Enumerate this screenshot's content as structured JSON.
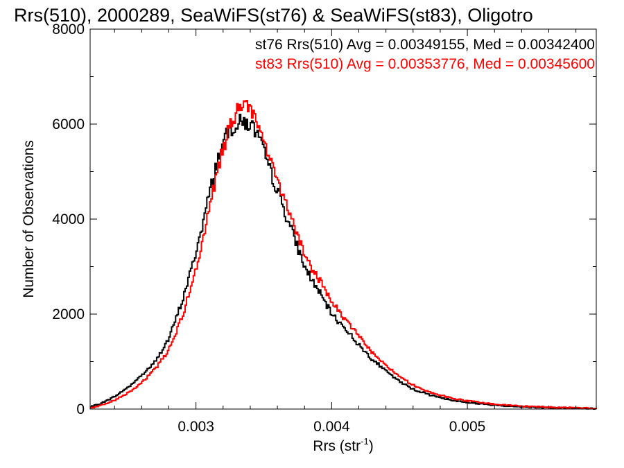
{
  "chart_data": {
    "type": "line",
    "title": "Rrs(510), 2000289, SeaWiFS(st76) & SeaWiFS(st83), Oligotro",
    "xlabel_main": "Rrs (str",
    "xlabel_sup": "-1",
    "xlabel_close": ")",
    "ylabel": "Number of Observations",
    "xlim": [
      0.00222,
      0.00595
    ],
    "ylim": [
      0,
      8000
    ],
    "x_ticks": [
      {
        "value": 0.003,
        "label": "0.003"
      },
      {
        "value": 0.004,
        "label": "0.004"
      },
      {
        "value": 0.005,
        "label": "0.005"
      }
    ],
    "y_ticks": [
      {
        "value": 0,
        "label": "0"
      },
      {
        "value": 2000,
        "label": "2000"
      },
      {
        "value": 4000,
        "label": "4000"
      },
      {
        "value": 6000,
        "label": "6000"
      },
      {
        "value": 8000,
        "label": "8000"
      }
    ],
    "grid": false,
    "annotations": [
      {
        "text": "st76 Rrs(510) Avg = 0.00349155, Med = 0.00342400",
        "color": "#000000"
      },
      {
        "text": "st83 Rrs(510) Avg = 0.00353776, Med = 0.00345600",
        "color": "#ff0000"
      }
    ],
    "series": [
      {
        "color": "#000000",
        "x": [
          0.00222,
          0.0023,
          0.0024,
          0.0025,
          0.0026,
          0.0027,
          0.0028,
          0.0029,
          0.003,
          0.00305,
          0.0031,
          0.00315,
          0.0032,
          0.00325,
          0.0033,
          0.00335,
          0.0034,
          0.00345,
          0.0035,
          0.00355,
          0.0036,
          0.00365,
          0.0037,
          0.00375,
          0.0038,
          0.0039,
          0.004,
          0.0041,
          0.0042,
          0.0043,
          0.0044,
          0.0045,
          0.0046,
          0.0047,
          0.0048,
          0.0049,
          0.005,
          0.0052,
          0.0054,
          0.0056,
          0.0058,
          0.00595
        ],
        "values": [
          40,
          120,
          260,
          460,
          710,
          1000,
          1480,
          2280,
          3300,
          3900,
          4550,
          5150,
          5600,
          5900,
          6000,
          6050,
          6000,
          5800,
          5400,
          5000,
          4600,
          4200,
          3800,
          3400,
          3000,
          2500,
          2000,
          1700,
          1350,
          1050,
          800,
          580,
          420,
          320,
          240,
          180,
          140,
          80,
          50,
          30,
          20,
          10
        ]
      },
      {
        "color": "#ff0000",
        "x": [
          0.00222,
          0.0023,
          0.0024,
          0.0025,
          0.0026,
          0.0027,
          0.0028,
          0.0029,
          0.003,
          0.00305,
          0.0031,
          0.00315,
          0.0032,
          0.00325,
          0.0033,
          0.00335,
          0.0034,
          0.00345,
          0.0035,
          0.00355,
          0.0036,
          0.00365,
          0.0037,
          0.00375,
          0.0038,
          0.0039,
          0.004,
          0.0041,
          0.0042,
          0.0043,
          0.0044,
          0.0045,
          0.0046,
          0.0047,
          0.0048,
          0.0049,
          0.005,
          0.0052,
          0.0054,
          0.0056,
          0.0058,
          0.00595
        ],
        "values": [
          20,
          80,
          180,
          340,
          560,
          850,
          1250,
          1950,
          2950,
          3550,
          4250,
          4900,
          5500,
          5950,
          6250,
          6350,
          6300,
          6050,
          5650,
          5250,
          4850,
          4450,
          4050,
          3650,
          3250,
          2750,
          2250,
          1900,
          1550,
          1200,
          920,
          680,
          500,
          380,
          290,
          220,
          170,
          100,
          60,
          40,
          25,
          15
        ]
      }
    ]
  }
}
